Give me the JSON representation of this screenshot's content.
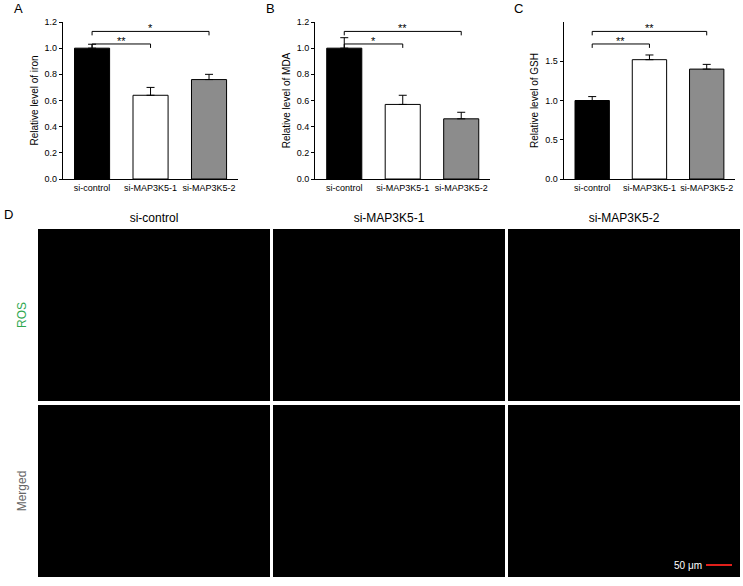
{
  "chart_data": [
    {
      "type": "bar",
      "panel": "A",
      "y_label": "Relative level of iron",
      "categories": [
        "si-control",
        "si-MAP3K5-1",
        "si-MAP3K5-2"
      ],
      "values": [
        1.0,
        0.64,
        0.76
      ],
      "errors": [
        0.03,
        0.06,
        0.04
      ],
      "colors": [
        "#000000",
        "#ffffff",
        "#8c8c8c"
      ],
      "ylim": [
        0,
        1.2
      ],
      "yticks": [
        {
          "value": 0,
          "label": "0.0"
        },
        0.2,
        0.4,
        0.6,
        0.8,
        {
          "value": 1,
          "label": "1.0"
        },
        1.2
      ],
      "grid": false,
      "significance": [
        {
          "from": "si-control",
          "to": "si-MAP3K5-1",
          "label": "**"
        },
        {
          "from": "si-control",
          "to": "si-MAP3K5-2",
          "label": "*"
        }
      ]
    },
    {
      "type": "bar",
      "panel": "B",
      "y_label": "Relative level of MDA",
      "categories": [
        "si-control",
        "si-MAP3K5-1",
        "si-MAP3K5-2"
      ],
      "values": [
        1.0,
        0.57,
        0.46
      ],
      "errors": [
        0.08,
        0.07,
        0.05
      ],
      "colors": [
        "#000000",
        "#ffffff",
        "#8c8c8c"
      ],
      "ylim": [
        0,
        1.2
      ],
      "yticks": [
        {
          "value": 0,
          "label": "0.0"
        },
        0.2,
        0.4,
        0.6,
        0.8,
        {
          "value": 1,
          "label": "1.0"
        },
        1.2
      ],
      "grid": false,
      "significance": [
        {
          "from": "si-control",
          "to": "si-MAP3K5-1",
          "label": "*"
        },
        {
          "from": "si-control",
          "to": "si-MAP3K5-2",
          "label": "**"
        }
      ]
    },
    {
      "type": "bar",
      "panel": "C",
      "y_label": "Relative level of GSH",
      "categories": [
        "si-control",
        "si-MAP3K5-1",
        "si-MAP3K5-2"
      ],
      "values": [
        1.0,
        1.52,
        1.4
      ],
      "errors": [
        0.05,
        0.06,
        0.06
      ],
      "colors": [
        "#000000",
        "#ffffff",
        "#8c8c8c"
      ],
      "ylim": [
        0,
        2.0
      ],
      "yticks": [
        {
          "value": 0,
          "label": "0.0"
        },
        0.5,
        {
          "value": 1,
          "label": "1.0"
        },
        1.5
      ],
      "grid": false,
      "significance": [
        {
          "from": "si-control",
          "to": "si-MAP3K5-1",
          "label": "**"
        },
        {
          "from": "si-control",
          "to": "si-MAP3K5-2",
          "label": "**"
        }
      ]
    }
  ],
  "image_panel": {
    "panel": "D",
    "columns": [
      "si-control",
      "si-MAP3K5-1",
      "si-MAP3K5-2"
    ],
    "rows": [
      "ROS",
      "Merged"
    ],
    "scale_bar": "50 μm"
  }
}
